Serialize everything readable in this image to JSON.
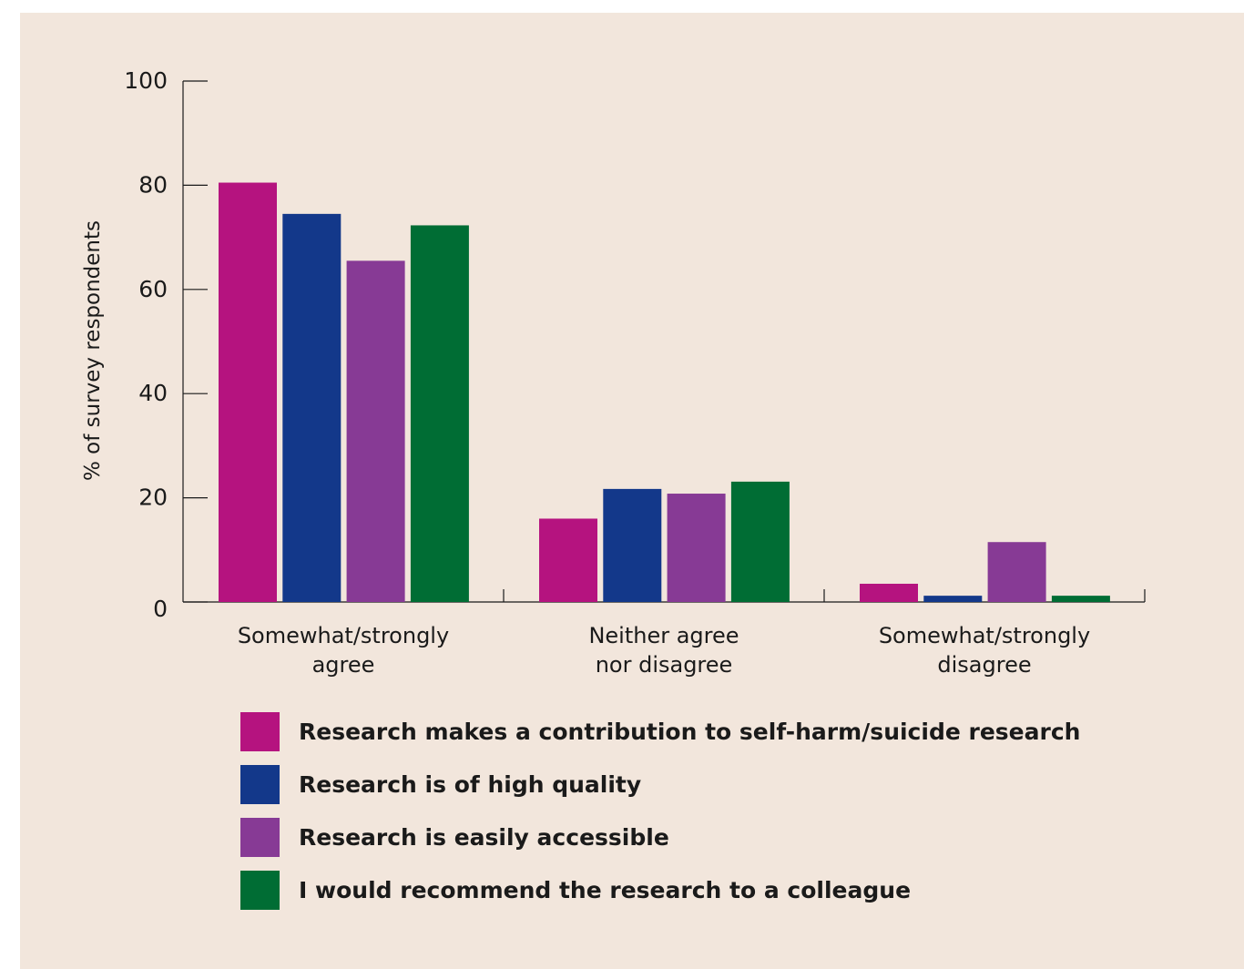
{
  "chart_data": {
    "type": "bar",
    "categories": [
      [
        "Somewhat/strongly",
        "agree"
      ],
      [
        "Neither agree",
        "nor disagree"
      ],
      [
        "Somewhat/strongly",
        "disagree"
      ]
    ],
    "series": [
      {
        "name": "Research makes a contribution to self-harm/suicide research",
        "color": "#b5137f",
        "values": [
          80.5,
          16,
          3.5
        ]
      },
      {
        "name": "Research is of high quality",
        "color": "#13388a",
        "values": [
          74.5,
          21.7,
          1.2
        ]
      },
      {
        "name": "Research is easily accessible",
        "color": "#873a95",
        "values": [
          65.5,
          20.8,
          11.5
        ]
      },
      {
        "name": "I would recommend the research to a colleague",
        "color": "#006d34",
        "values": [
          72.3,
          23.1,
          1.2
        ]
      }
    ],
    "ylabel": "% of survey respondents",
    "ylim": [
      0,
      100
    ],
    "yticks": [
      0,
      20,
      40,
      60,
      80,
      100
    ],
    "grid": false,
    "legend_position": "bottom"
  }
}
